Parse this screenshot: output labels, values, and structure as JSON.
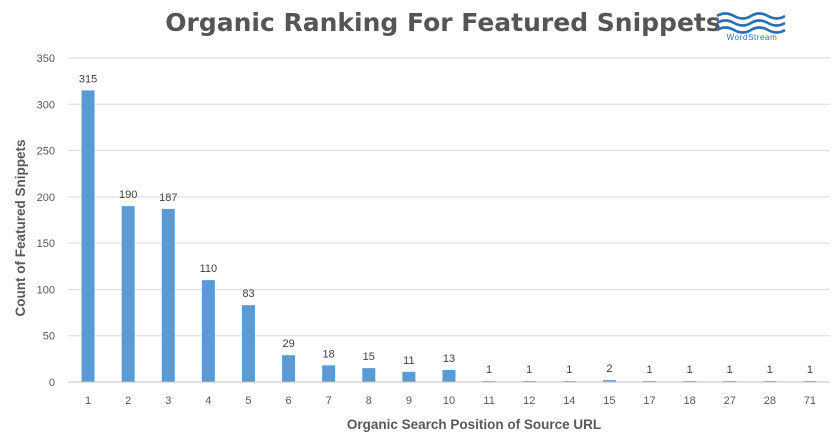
{
  "chart_data": {
    "type": "bar",
    "title": "Organic Ranking For Featured Snippets",
    "xlabel": "Organic Search Position of Source URL",
    "ylabel": "Count of Featured Snippets",
    "categories": [
      "1",
      "2",
      "3",
      "4",
      "5",
      "6",
      "7",
      "8",
      "9",
      "10",
      "11",
      "12",
      "14",
      "15",
      "17",
      "18",
      "27",
      "28",
      "71"
    ],
    "values": [
      315,
      190,
      187,
      110,
      83,
      29,
      18,
      15,
      11,
      13,
      1,
      1,
      1,
      2,
      1,
      1,
      1,
      1,
      1
    ],
    "ylim": [
      0,
      350
    ],
    "yticks": [
      0,
      50,
      100,
      150,
      200,
      250,
      300,
      350
    ],
    "grid": true,
    "bar_color": "#5b9bd5",
    "data_labels": true
  },
  "logo": {
    "text": "WordStream",
    "color": "#2d6fb6"
  }
}
